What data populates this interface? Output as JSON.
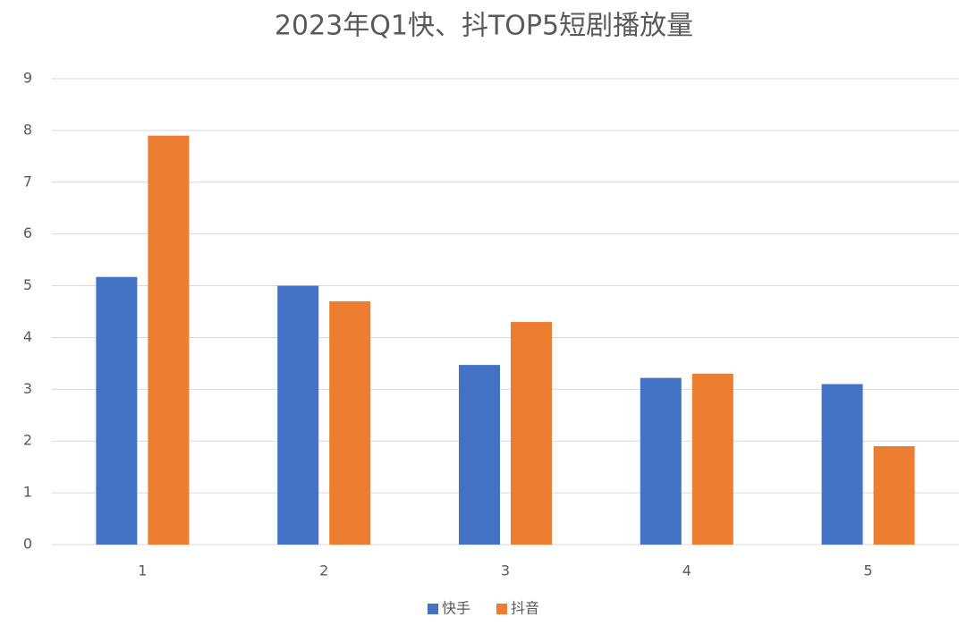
{
  "chart_data": {
    "type": "bar",
    "title": "2023年Q1快、抖TOP5短剧播放量",
    "categories": [
      "1",
      "2",
      "3",
      "4",
      "5"
    ],
    "series": [
      {
        "name": "快手",
        "color": "#4472c4",
        "values": [
          5.17,
          5.0,
          3.47,
          3.22,
          3.1
        ]
      },
      {
        "name": "抖音",
        "color": "#ed7d31",
        "values": [
          7.9,
          4.7,
          4.3,
          3.3,
          1.9
        ]
      }
    ],
    "ylim": [
      0,
      9
    ],
    "yticks": [
      0,
      1,
      2,
      3,
      4,
      5,
      6,
      7,
      8,
      9
    ],
    "grid": true,
    "legend": "bottom"
  }
}
